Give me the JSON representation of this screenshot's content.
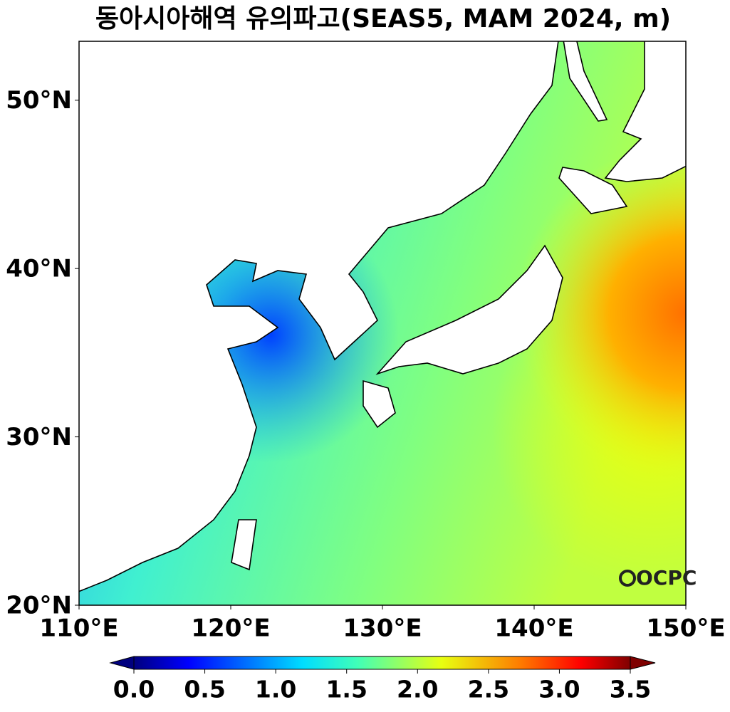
{
  "chart_data": {
    "type": "map",
    "title": "동아시아해역 유의파고(SEAS5, MAM 2024, m)",
    "xlim": [
      110,
      150
    ],
    "ylim": [
      20,
      53.5
    ],
    "xticks": [
      {
        "value": 110,
        "label": "110°E"
      },
      {
        "value": 120,
        "label": "120°E"
      },
      {
        "value": 130,
        "label": "130°E"
      },
      {
        "value": 140,
        "label": "140°E"
      },
      {
        "value": 150,
        "label": "150°E"
      }
    ],
    "yticks": [
      {
        "value": 20,
        "label": "20°N"
      },
      {
        "value": 30,
        "label": "30°N"
      },
      {
        "value": 40,
        "label": "40°N"
      },
      {
        "value": 50,
        "label": "50°N"
      }
    ],
    "colorbar_lim": [
      0,
      3.5
    ],
    "colorbar_ticks": [
      {
        "value": 0,
        "label": "0.0"
      },
      0.5,
      {
        "value": 1,
        "label": "1.0"
      },
      1.5,
      {
        "value": 2,
        "label": "2.0"
      },
      2.5,
      {
        "value": 3,
        "label": "3.0"
      },
      3.5
    ],
    "logo": "OCPC"
  }
}
